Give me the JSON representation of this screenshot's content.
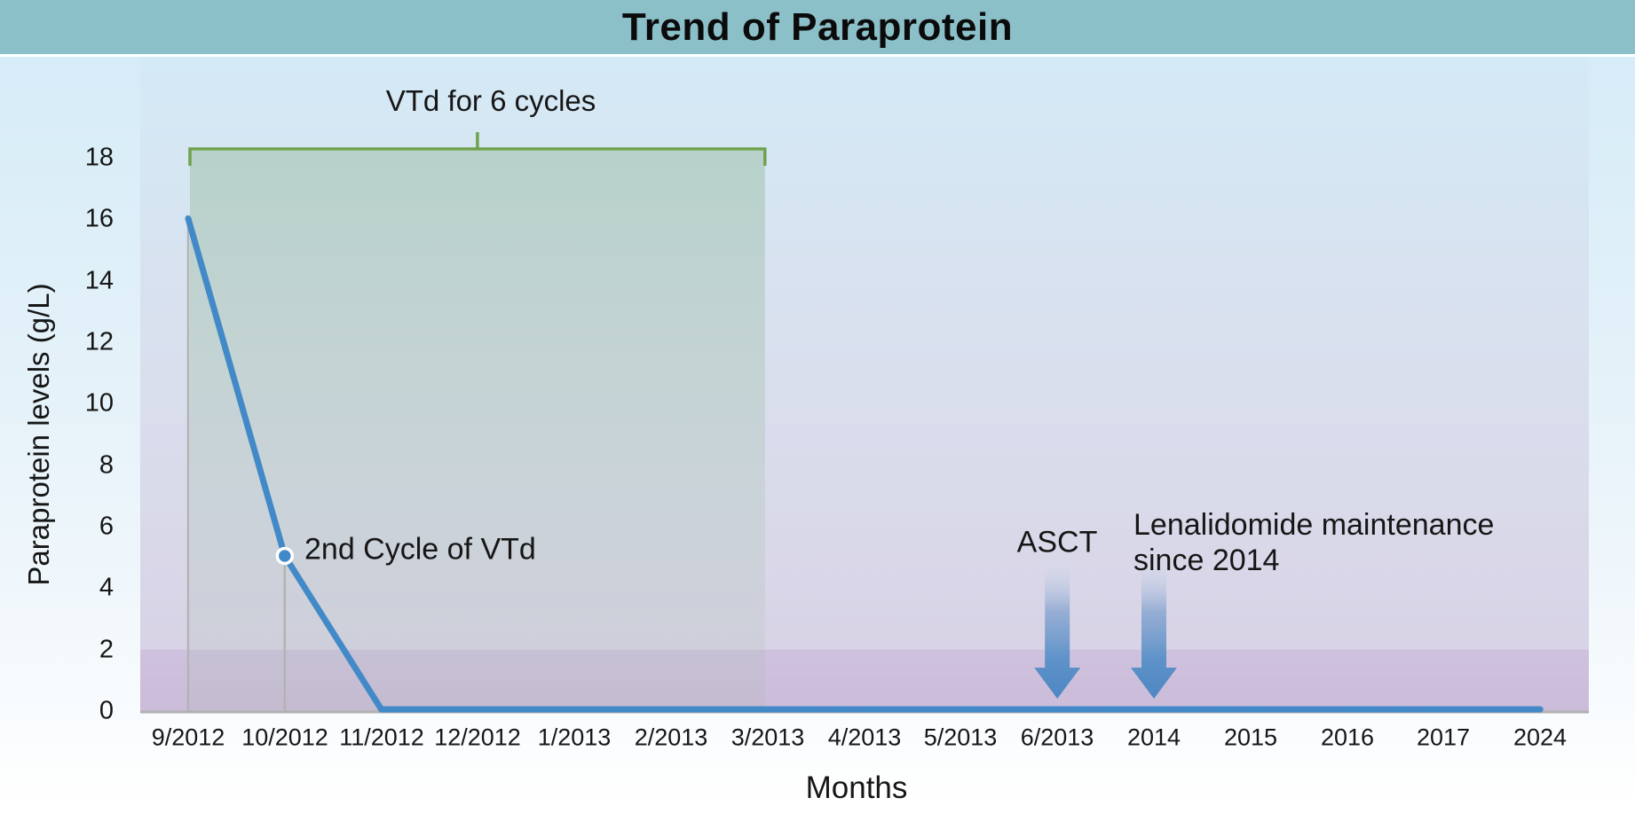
{
  "header": {
    "title": "Trend of Paraprotein"
  },
  "colors": {
    "header_teal": "#8cc0c9",
    "line_blue": "#4289c8",
    "arrow_blue": "#5d92c9",
    "bracket_green": "#6fa24c",
    "band_purple": "#cec0dc",
    "dropline_gray": "#b3b3b3"
  },
  "chart_data": {
    "type": "line",
    "title": "Trend of Paraprotein",
    "xlabel": "Months",
    "ylabel": "Paraprotein levels (g/L)",
    "x_labels": [
      "9/2012",
      "10/2012",
      "11/2012",
      "12/2012",
      "1/2013",
      "2/2013",
      "3/2013",
      "4/2013",
      "5/2013",
      "6/2013",
      "2014",
      "2015",
      "2016",
      "2017",
      "2024"
    ],
    "y_ticks": [
      18,
      16,
      14,
      12,
      10,
      8,
      6,
      4,
      2,
      0
    ],
    "ylim": [
      0,
      18
    ],
    "grid": "off",
    "legend": "none",
    "series": [
      {
        "name": "Paraprotein level",
        "color": "#4289c8",
        "points": [
          {
            "x": "9/2012",
            "y": 16
          },
          {
            "x": "10/2012",
            "y": 5
          },
          {
            "x": "11/2012",
            "y": 0
          },
          {
            "x": "2024",
            "y": 0
          }
        ]
      }
    ],
    "droplines": [
      {
        "x": "9/2012",
        "y": 16
      },
      {
        "x": "10/2012",
        "y": 5
      }
    ],
    "marker": {
      "x": "10/2012",
      "y": 5,
      "label": "2nd Cycle of VTd"
    },
    "band": {
      "y_from": 0,
      "y_to": 2
    },
    "annotations": {
      "bracket": {
        "label": "VTd for 6 cycles",
        "from": "9/2012",
        "to": "3/2013"
      },
      "arrows": [
        {
          "x": "6/2013",
          "label": "ASCT"
        },
        {
          "x": "2014",
          "label_line1": "Lenalidomide maintenance",
          "label_line2": "since 2014"
        }
      ]
    }
  }
}
